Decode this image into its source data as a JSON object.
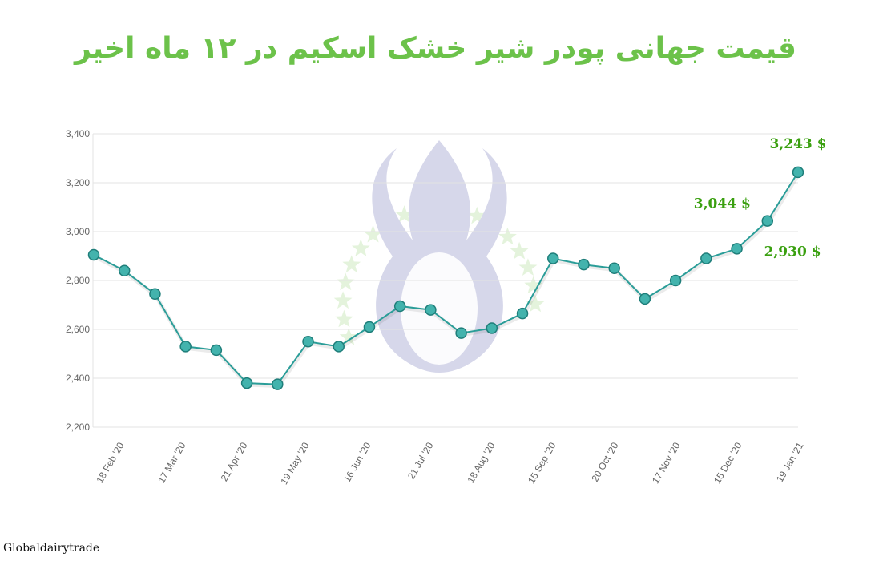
{
  "title": "قیمت جهانی پودر شیر خشک اسکیم در ۱۲ ماه اخیر",
  "source": "Globaldairytrade",
  "colors": {
    "title": "#6cc24a",
    "line": "#2a9d98",
    "marker_fill": "#43b3ad",
    "marker_stroke": "#1f7e7a",
    "annotation": "#3aa010",
    "watermark_flame": "#d6d7ea",
    "watermark_stars": "#e4f3dc"
  },
  "chart_data": {
    "type": "line",
    "title": "قیمت جهانی پودر شیر خشک اسکیم در ۱۲ ماه اخیر",
    "xlabel": "",
    "ylabel": "",
    "ylim": [
      2200,
      3400
    ],
    "yticks": [
      "2,200",
      "2,400",
      "2,600",
      "2,800",
      "3,000",
      "3,200",
      "3,400"
    ],
    "ytick_values": [
      2200,
      2400,
      2600,
      2800,
      3000,
      3200,
      3400
    ],
    "xtick_labels": [
      "18 Feb '20",
      "17 Mar '20",
      "21 Apr '20",
      "19 May '20",
      "16 Jun '20",
      "21 Jul '20",
      "18 Aug '20",
      "15 Sep '20",
      "20 Oct '20",
      "17 Nov '20",
      "15 Dec '20",
      "19 Jan '21"
    ],
    "values": [
      2905,
      2840,
      2745,
      2530,
      2515,
      2380,
      2375,
      2550,
      2530,
      2610,
      2695,
      2680,
      2585,
      2605,
      2665,
      2890,
      2865,
      2850,
      2725,
      2800,
      2890,
      2930,
      3044,
      3243
    ],
    "grid": true,
    "annotations": [
      {
        "text": "3,243 $",
        "index": 23
      },
      {
        "text": "3,044 $",
        "index": 22
      },
      {
        "text": "2,930 $",
        "index": 21
      }
    ]
  }
}
